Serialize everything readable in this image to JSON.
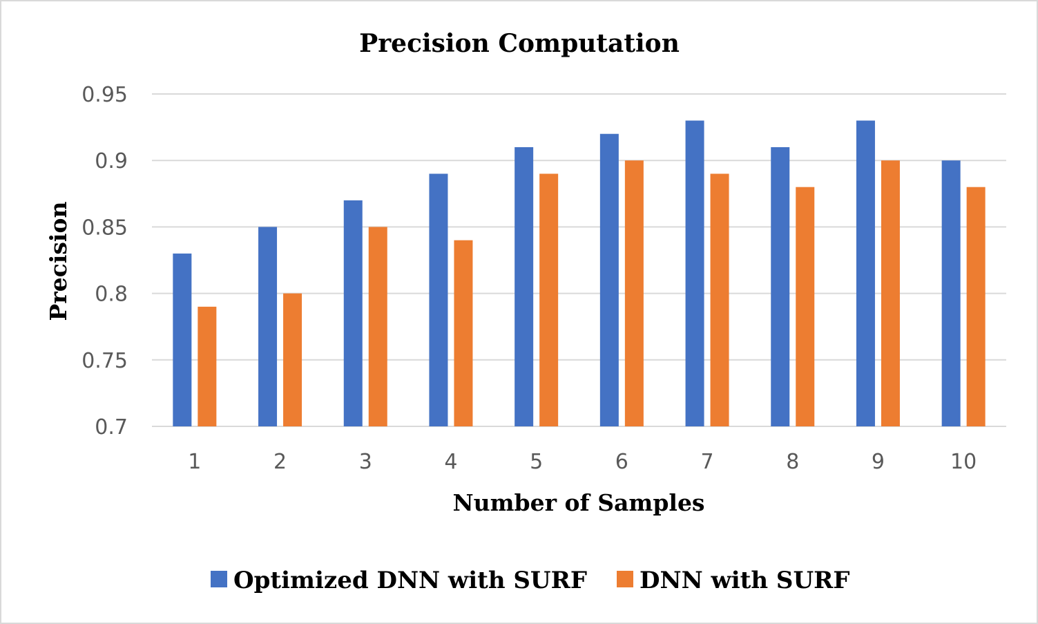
{
  "chart_data": {
    "type": "bar",
    "title": "Precision Computation",
    "xlabel": "Number of Samples",
    "ylabel": "Precision",
    "categories": [
      "1",
      "2",
      "3",
      "4",
      "5",
      "6",
      "7",
      "8",
      "9",
      "10"
    ],
    "series": [
      {
        "name": "Optimized DNN with SURF",
        "color": "#4472c4",
        "values": [
          0.83,
          0.85,
          0.87,
          0.89,
          0.91,
          0.92,
          0.93,
          0.91,
          0.93,
          0.9
        ]
      },
      {
        "name": "DNN with SURF",
        "color": "#ed7d31",
        "values": [
          0.79,
          0.8,
          0.85,
          0.84,
          0.89,
          0.9,
          0.89,
          0.88,
          0.9,
          0.88
        ]
      }
    ],
    "ylim": [
      0.7,
      0.95
    ],
    "yticks": [
      "0.7",
      "0.75",
      "0.8",
      "0.85",
      "0.9",
      "0.95"
    ],
    "grid": true,
    "legend_position": "bottom"
  }
}
